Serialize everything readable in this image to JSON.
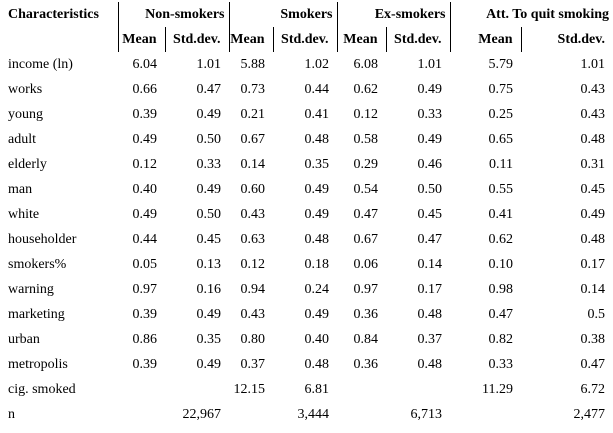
{
  "table": {
    "corner_header": "Characteristics",
    "groups": [
      {
        "label": "Non-smokers",
        "mean_label": "Mean",
        "std_label": "Std.dev."
      },
      {
        "label": "Smokers",
        "mean_label": "Mean",
        "std_label": "Std.dev."
      },
      {
        "label": "Ex-smokers",
        "mean_label": "Mean",
        "std_label": "Std.dev."
      },
      {
        "label": "Att. To quit smoking",
        "mean_label": "Mean",
        "std_label": "Std.dev."
      }
    ],
    "rows": [
      {
        "label": "income (ln)",
        "values": [
          "6.04",
          "1.01",
          "5.88",
          "1.02",
          "6.08",
          "1.01",
          "5.79",
          "1.01"
        ]
      },
      {
        "label": "works",
        "values": [
          "0.66",
          "0.47",
          "0.73",
          "0.44",
          "0.62",
          "0.49",
          "0.75",
          "0.43"
        ]
      },
      {
        "label": "young",
        "values": [
          "0.39",
          "0.49",
          "0.21",
          "0.41",
          "0.12",
          "0.33",
          "0.25",
          "0.43"
        ]
      },
      {
        "label": "adult",
        "values": [
          "0.49",
          "0.50",
          "0.67",
          "0.48",
          "0.58",
          "0.49",
          "0.65",
          "0.48"
        ]
      },
      {
        "label": "elderly",
        "values": [
          "0.12",
          "0.33",
          "0.14",
          "0.35",
          "0.29",
          "0.46",
          "0.11",
          "0.31"
        ]
      },
      {
        "label": "man",
        "values": [
          "0.40",
          "0.49",
          "0.60",
          "0.49",
          "0.54",
          "0.50",
          "0.55",
          "0.45"
        ]
      },
      {
        "label": "white",
        "values": [
          "0.49",
          "0.50",
          "0.43",
          "0.49",
          "0.47",
          "0.45",
          "0.41",
          "0.49"
        ]
      },
      {
        "label": "householder",
        "values": [
          "0.44",
          "0.45",
          "0.63",
          "0.48",
          "0.67",
          "0.47",
          "0.62",
          "0.48"
        ]
      },
      {
        "label": "smokers%",
        "values": [
          "0.05",
          "0.13",
          "0.12",
          "0.18",
          "0.06",
          "0.14",
          "0.10",
          "0.17"
        ]
      },
      {
        "label": "warning",
        "values": [
          "0.97",
          "0.16",
          "0.94",
          "0.24",
          "0.97",
          "0.17",
          "0.98",
          "0.14"
        ]
      },
      {
        "label": "marketing",
        "values": [
          "0.39",
          "0.49",
          "0.43",
          "0.49",
          "0.36",
          "0.48",
          "0.47",
          "0.5"
        ]
      },
      {
        "label": "urban",
        "values": [
          "0.86",
          "0.35",
          "0.80",
          "0.40",
          "0.84",
          "0.37",
          "0.82",
          "0.38"
        ]
      },
      {
        "label": "metropolis",
        "values": [
          "0.39",
          "0.49",
          "0.37",
          "0.48",
          "0.36",
          "0.48",
          "0.33",
          "0.47"
        ]
      },
      {
        "label": "cig. smoked",
        "values": [
          "",
          "",
          "12.15",
          "6.81",
          "",
          "",
          "11.29",
          "6.72"
        ]
      },
      {
        "label": "n",
        "values": [
          "",
          "22,967",
          "",
          "3,444",
          "",
          "6,713",
          "",
          "2,477"
        ]
      }
    ]
  }
}
